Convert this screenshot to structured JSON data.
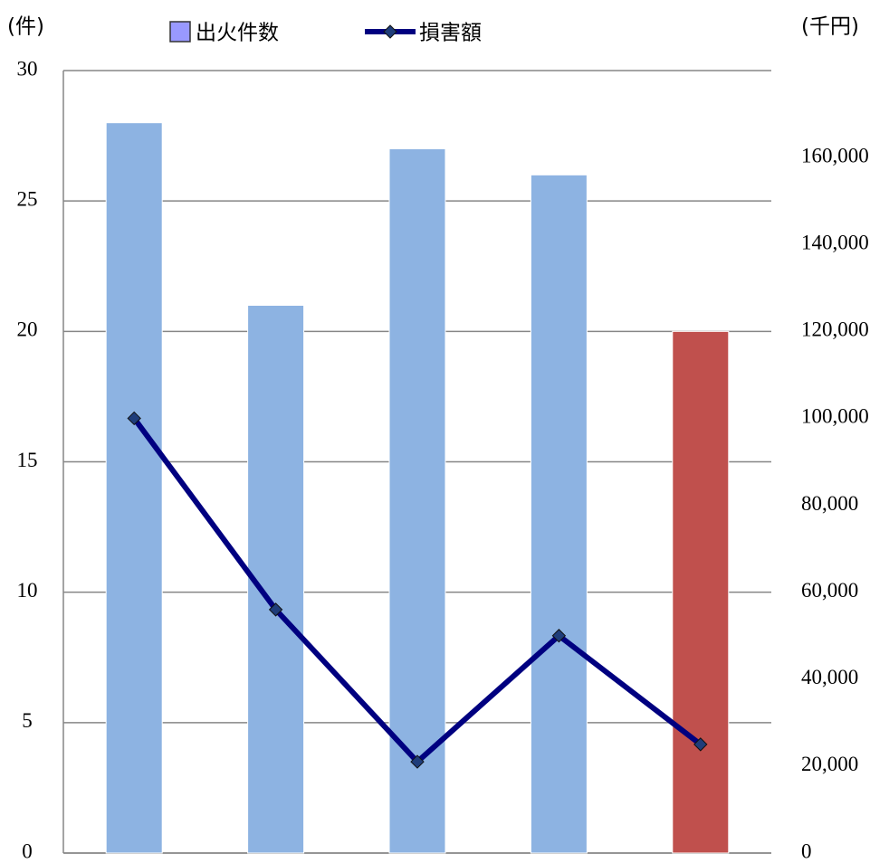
{
  "chart_data": {
    "type": "bar_line",
    "y_label": "(件)",
    "y2_label": "(千円)",
    "categories": [
      null,
      null,
      null,
      null,
      null
    ],
    "series": [
      {
        "name": "出火件数",
        "type": "bar",
        "color": "#9999ff",
        "colors": [
          "#8db3e2",
          "#8db3e2",
          "#8db3e2",
          "#8db3e2",
          "#c0504d"
        ],
        "values": [
          28,
          21,
          27,
          26,
          20
        ]
      },
      {
        "name": "損害額",
        "type": "line",
        "axis": "y2",
        "color": "#000080",
        "values": [
          100000,
          56000,
          21000,
          50000,
          25000
        ]
      }
    ],
    "ylim": [
      0,
      30
    ],
    "yticks": [
      0,
      5,
      10,
      15,
      20,
      25,
      30
    ],
    "y2lim": [
      0,
      180000
    ],
    "y2ticks": [
      0,
      {
        "value": 20000,
        "label": "20,000"
      },
      {
        "value": 40000,
        "label": "40,000"
      },
      {
        "value": 60000,
        "label": "60,000"
      },
      {
        "value": 80000,
        "label": "80,000"
      },
      {
        "value": 100000,
        "label": "100,000"
      },
      {
        "value": 120000,
        "label": "120,000"
      },
      {
        "value": 140000,
        "label": "140,000"
      },
      {
        "value": 160000,
        "label": "160,000"
      }
    ],
    "grid": true
  }
}
